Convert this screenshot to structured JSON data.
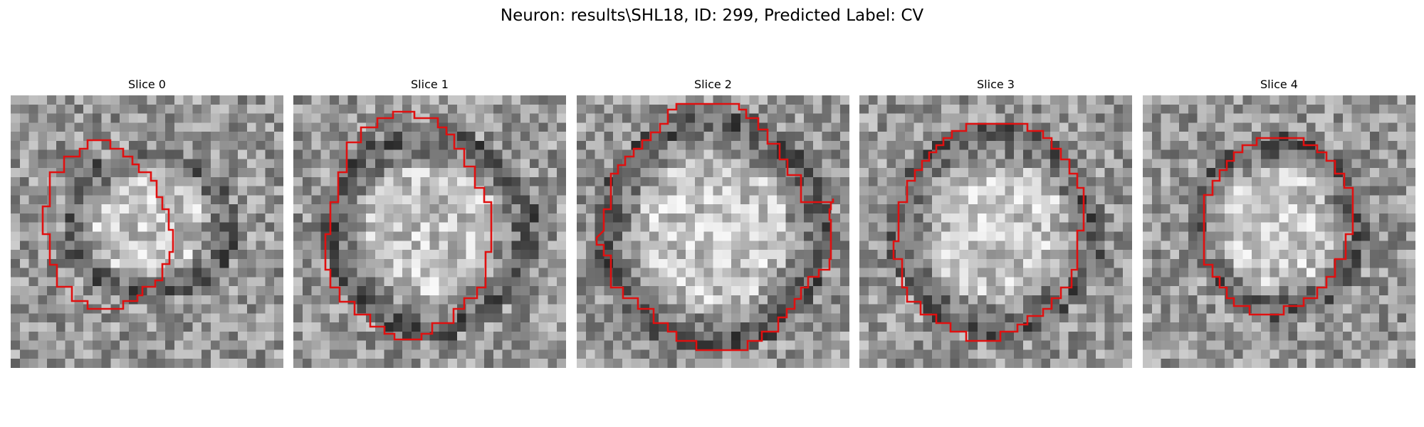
{
  "figure": {
    "title": "Neuron: results\\SHL18, ID: 299, Predicted Label: CV",
    "contour_color": "#e01010",
    "colormap": "grayscale",
    "grid_size": 30
  },
  "panels": [
    {
      "title": "Slice 0"
    },
    {
      "title": "Slice 1"
    },
    {
      "title": "Slice 2"
    },
    {
      "title": "Slice 3"
    },
    {
      "title": "Slice 4"
    }
  ]
}
